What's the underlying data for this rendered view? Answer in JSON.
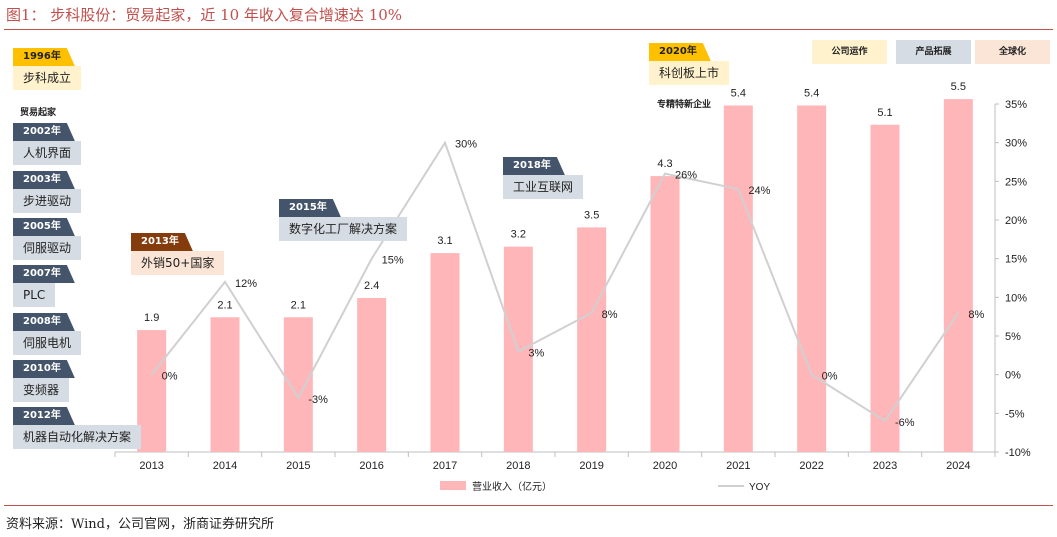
{
  "header": {
    "title": "图1：   步科股份：贸易起家，近 10 年收入复合增速达 10%"
  },
  "footer": {
    "source": "资料来源：Wind，公司官网，浙商证券研究所"
  },
  "legend_tags": [
    {
      "label": "公司运作",
      "color": "#fff2cc"
    },
    {
      "label": "产品拓展",
      "color": "#d6dce4"
    },
    {
      "label": "全球化",
      "color": "#fbe5d6"
    }
  ],
  "milestones": [
    {
      "year": "1996年",
      "text": "步科成立",
      "style": "gold"
    },
    {
      "year": "2002年",
      "text": "人机界面",
      "style": "dark"
    },
    {
      "year": "2003年",
      "text": "步进驱动",
      "style": "dark"
    },
    {
      "year": "2005年",
      "text": "伺服驱动",
      "style": "dark"
    },
    {
      "year": "2007年",
      "text": "PLC",
      "style": "dark"
    },
    {
      "year": "2008年",
      "text": "伺服电机",
      "style": "dark"
    },
    {
      "year": "2010年",
      "text": "变频器",
      "style": "dark"
    },
    {
      "year": "2012年",
      "text": "机器自动化解决方案",
      "style": "dark"
    },
    {
      "year": "2013年",
      "text": "外销50+国家",
      "style": "brown"
    },
    {
      "year": "2015年",
      "text": "数字化工厂解决方案",
      "style": "dark"
    },
    {
      "year": "2018年",
      "text": "工业互联网",
      "style": "dark"
    },
    {
      "year": "2020年",
      "text": "科创板上市",
      "style": "gold"
    }
  ],
  "notes": {
    "trade": "贸易起家",
    "specialized": "专精特新企业"
  },
  "chart_data": {
    "type": "bar",
    "categories": [
      "2013",
      "2014",
      "2015",
      "2016",
      "2017",
      "2018",
      "2019",
      "2020",
      "2021",
      "2022",
      "2023",
      "2024"
    ],
    "series": [
      {
        "name": "营业收入（亿元）",
        "type": "bar",
        "axis": "left",
        "color": "#ffb6b9",
        "values": [
          1.9,
          2.1,
          2.1,
          2.4,
          3.1,
          3.2,
          3.5,
          4.3,
          5.4,
          5.4,
          5.1,
          5.5
        ],
        "labels": [
          "1.9",
          "2.1",
          "2.1",
          "2.4",
          "3.1",
          "3.2",
          "3.5",
          "4.3",
          "5.4",
          "5.4",
          "5.1",
          "5.5"
        ]
      },
      {
        "name": "YOY",
        "type": "line",
        "axis": "right",
        "color": "#d0d0d0",
        "values": [
          0,
          12,
          -3,
          15,
          30,
          3,
          8,
          26,
          24,
          0,
          -6,
          8
        ],
        "labels": [
          "0%",
          "12%",
          "-3%",
          "15%",
          "30%",
          "3%",
          "8%",
          "26%",
          "24%",
          "0%",
          "-6%",
          "8%"
        ]
      }
    ],
    "left_ylim": [
      0,
      6
    ],
    "right_axis": {
      "ylim": [
        -10,
        35
      ],
      "ticks": [
        "35%",
        "30%",
        "25%",
        "20%",
        "15%",
        "10%",
        "5%",
        "0%",
        "-5%",
        "-10%"
      ]
    },
    "legend_position": "bottom"
  }
}
